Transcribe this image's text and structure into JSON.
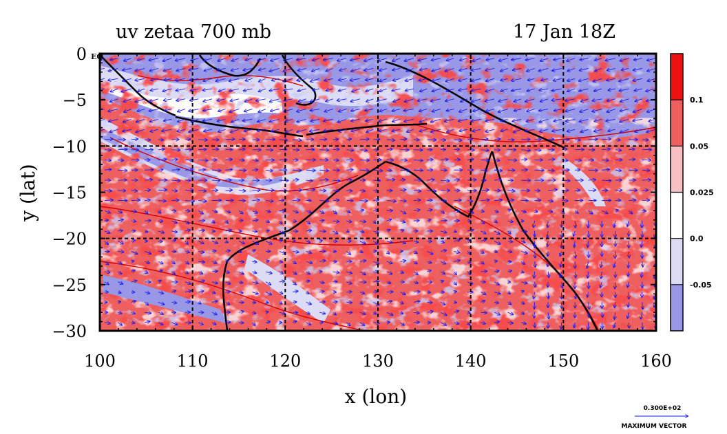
{
  "chart_data": {
    "type": "heatmap",
    "title": "uv zetaa 700 mb",
    "time_label": "17 Jan 18Z",
    "xlabel": "x (lon)",
    "ylabel": "y (lat)",
    "xlim": [
      100,
      160
    ],
    "ylim": [
      -30,
      0
    ],
    "x_ticks": [
      "100",
      "110",
      "120",
      "130",
      "140",
      "150",
      "160"
    ],
    "y_ticks": [
      "0",
      "−5",
      "−10",
      "−15",
      "−20",
      "−25",
      "−30"
    ],
    "y_tick_values": [
      0,
      -5,
      -10,
      -15,
      -20,
      -25,
      -30
    ],
    "x_tick_values": [
      100,
      110,
      120,
      130,
      140,
      150,
      160
    ],
    "corner_label": "EQ",
    "grid": true,
    "grid_lon": [
      110,
      120,
      130,
      140,
      150
    ],
    "grid_lat": [
      -10,
      -20
    ],
    "colorbar": {
      "ticks": [
        "0.1",
        "0.05",
        "0.025",
        "0.0",
        "-0.05"
      ],
      "bands_top_to_bottom": [
        "#ee1111",
        "#ee6060",
        "#f8c0c0",
        "#ffffff",
        "#dcdcf6",
        "#9898e6"
      ]
    },
    "vectors": {
      "color": "#1a1aee",
      "reference_value": "0.300E+02",
      "reference_label": "MAXIMUM VECTOR"
    },
    "colors": {
      "strong_positive": "#ee1111",
      "positive": "#ee6060",
      "weak_positive": "#f8c0c0",
      "weak_negative": "#dcdcf6",
      "negative": "#9898e6",
      "contour": "#d40000",
      "vector": "#1a1aee"
    }
  }
}
